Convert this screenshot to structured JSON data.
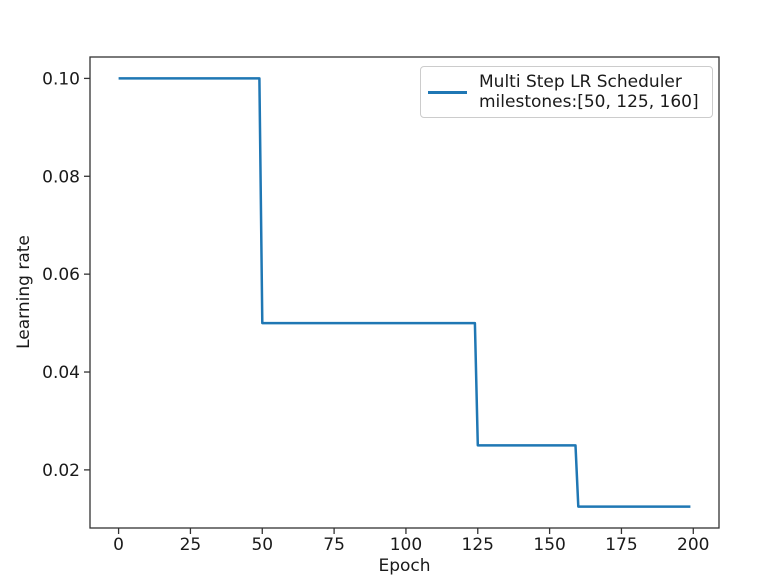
{
  "figure": {
    "background": "#ffffff"
  },
  "colors": {
    "axis": "#333333",
    "text": "#1a1a1a",
    "line": "#1f77b4",
    "legend_border": "#cccccc"
  },
  "chart_data": {
    "type": "line",
    "subtype": "step",
    "title": "",
    "xlabel": "Epoch",
    "ylabel": "Learning rate",
    "grid": false,
    "xlim": [
      -9.95,
      208.95
    ],
    "ylim": [
      0.008125,
      0.104375
    ],
    "xticks": {
      "values": [
        0,
        25,
        50,
        75,
        100,
        125,
        150,
        175,
        200
      ],
      "labels": [
        "0",
        "25",
        "50",
        "75",
        "100",
        "125",
        "150",
        "175",
        "200"
      ]
    },
    "yticks": {
      "values": [
        0.02,
        0.04,
        0.06,
        0.08,
        0.1
      ],
      "labels": [
        "0.02",
        "0.04",
        "0.06",
        "0.08",
        "0.10"
      ]
    },
    "series": [
      {
        "name": "Multi Step LR Scheduler\nmilestones:[50, 125, 160]",
        "color": "#1f77b4",
        "line_width": 2.5,
        "x": [
          0,
          49,
          50,
          124,
          125,
          159,
          160,
          199
        ],
        "y": [
          0.1,
          0.1,
          0.05,
          0.05,
          0.025,
          0.025,
          0.0125,
          0.0125
        ]
      }
    ],
    "legend": {
      "position": "upper right",
      "lines": [
        "Multi Step LR Scheduler",
        "milestones:[50, 125, 160]"
      ]
    }
  }
}
